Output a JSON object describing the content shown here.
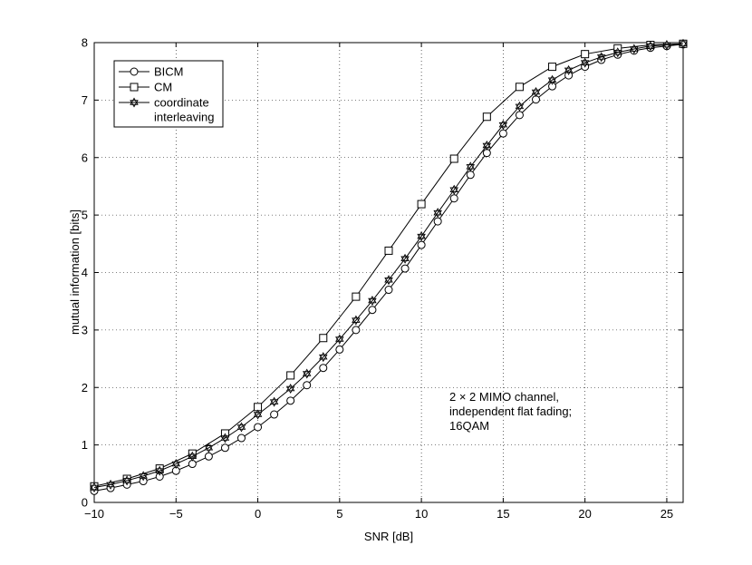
{
  "chart_data": {
    "type": "line",
    "title": "",
    "xlabel": "SNR [dB]",
    "ylabel": "mutual information [bits]",
    "xlim": [
      -10,
      26
    ],
    "ylim": [
      0,
      8
    ],
    "xticks": [
      -10,
      -5,
      0,
      5,
      10,
      15,
      20,
      25
    ],
    "yticks": [
      0,
      1,
      2,
      3,
      4,
      5,
      6,
      7,
      8
    ],
    "grid": true,
    "legend_position": "top-left",
    "annotation": [
      "2 × 2 MIMO channel,",
      "independent flat fading;",
      "16QAM"
    ],
    "series": [
      {
        "name": "BICM",
        "marker": "circle",
        "x": [
          -10,
          -9,
          -8,
          -7,
          -6,
          -5,
          -4,
          -3,
          -2,
          -1,
          0,
          1,
          2,
          3,
          4,
          5,
          6,
          7,
          8,
          9,
          10,
          11,
          12,
          13,
          14,
          15,
          16,
          17,
          18,
          19,
          20,
          21,
          22,
          23,
          24,
          25,
          26
        ],
        "values": [
          0.2,
          0.25,
          0.31,
          0.37,
          0.45,
          0.55,
          0.67,
          0.8,
          0.95,
          1.12,
          1.31,
          1.53,
          1.77,
          2.04,
          2.34,
          2.66,
          3.0,
          3.35,
          3.7,
          4.07,
          4.48,
          4.89,
          5.29,
          5.7,
          6.08,
          6.42,
          6.74,
          7.01,
          7.24,
          7.43,
          7.58,
          7.7,
          7.79,
          7.86,
          7.91,
          7.94,
          7.97
        ]
      },
      {
        "name": "CM",
        "marker": "square",
        "x": [
          -10,
          -8,
          -6,
          -4,
          -2,
          0,
          2,
          4,
          6,
          8,
          10,
          12,
          14,
          16,
          18,
          20,
          22,
          24,
          26
        ],
        "values": [
          0.28,
          0.41,
          0.59,
          0.85,
          1.2,
          1.66,
          2.21,
          2.86,
          3.58,
          4.38,
          5.19,
          5.98,
          6.71,
          7.23,
          7.58,
          7.8,
          7.9,
          7.96,
          7.98
        ]
      },
      {
        "name": "coordinate interleaving",
        "legend_lines": [
          "coordinate",
          "interleaving"
        ],
        "marker": "star",
        "x": [
          -10,
          -9,
          -8,
          -7,
          -6,
          -5,
          -4,
          -3,
          -2,
          -1,
          0,
          1,
          2,
          3,
          4,
          5,
          6,
          7,
          8,
          9,
          10,
          11,
          12,
          13,
          14,
          15,
          16,
          17,
          18,
          19,
          20,
          21,
          22,
          23,
          24,
          25,
          26
        ],
        "values": [
          0.26,
          0.31,
          0.38,
          0.46,
          0.55,
          0.67,
          0.8,
          0.95,
          1.12,
          1.31,
          1.53,
          1.75,
          1.98,
          2.24,
          2.53,
          2.84,
          3.17,
          3.51,
          3.87,
          4.24,
          4.63,
          5.04,
          5.44,
          5.84,
          6.21,
          6.57,
          6.89,
          7.14,
          7.35,
          7.52,
          7.65,
          7.75,
          7.83,
          7.89,
          7.94,
          7.96,
          7.98
        ]
      }
    ]
  }
}
